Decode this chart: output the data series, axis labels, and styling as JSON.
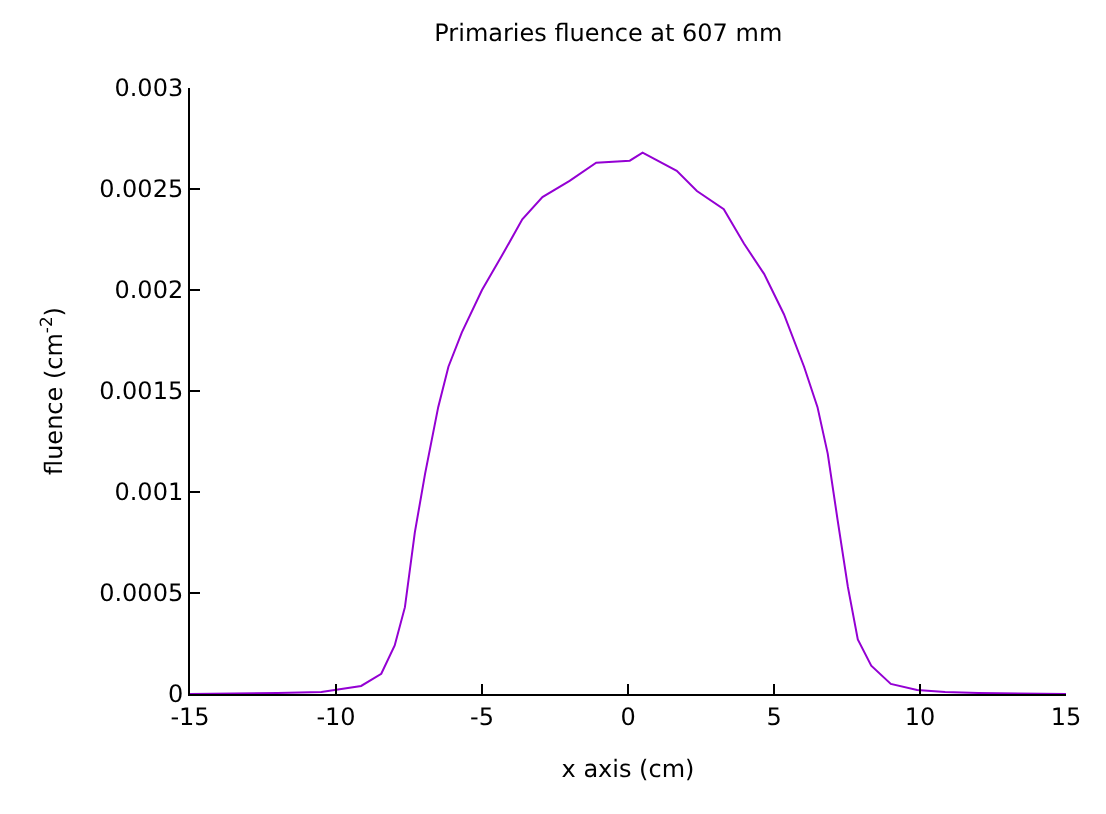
{
  "chart_data": {
    "type": "line",
    "title": "Primaries fluence at 607 mm",
    "xlabel": "x axis (cm)",
    "ylabel": "fluence (cm$^{-2}$)",
    "x": [
      -15,
      -12,
      -10.5,
      -9.14,
      -8.45,
      -7.99,
      -7.64,
      -7.3,
      -6.95,
      -6.5,
      -6.15,
      -5.69,
      -5.0,
      -4.2,
      -3.62,
      -2.93,
      -2.0,
      -1.09,
      0.06,
      0.5,
      1.67,
      2.36,
      3.28,
      3.97,
      4.66,
      5.34,
      6.03,
      6.49,
      6.84,
      7.18,
      7.53,
      7.87,
      8.33,
      9.0,
      9.9,
      10.86,
      12,
      15
    ],
    "series": [
      {
        "color": "#9400d3",
        "values": [
          0,
          5e-06,
          1e-05,
          4e-05,
          0.0001,
          0.00024,
          0.00043,
          0.0008,
          0.00109,
          0.00142,
          0.00162,
          0.00179,
          0.002,
          0.0022,
          0.00235,
          0.00246,
          0.00254,
          0.00263,
          0.00264,
          0.00268,
          0.00259,
          0.00249,
          0.0024,
          0.00223,
          0.00208,
          0.00188,
          0.00162,
          0.00142,
          0.00119,
          0.00086,
          0.00053,
          0.00027,
          0.00014,
          5e-05,
          2e-05,
          1e-05,
          5e-06,
          0
        ]
      }
    ],
    "xlim": [
      -15,
      15
    ],
    "xticks": [
      -15,
      -10,
      -5,
      0,
      5,
      10,
      15
    ],
    "ylim": [
      0,
      0.003
    ],
    "yticks": [
      0,
      0.0005,
      0.001,
      0.0015,
      0.002,
      0.0025,
      0.003
    ],
    "grid": false,
    "legend": false,
    "marker": "none",
    "line_style": "solid"
  }
}
